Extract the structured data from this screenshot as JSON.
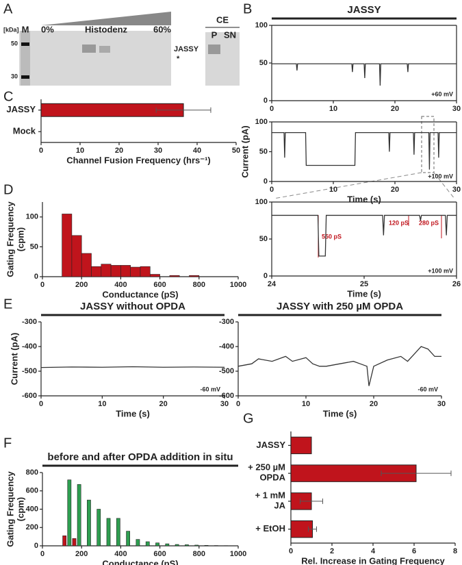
{
  "panels": [
    "A",
    "B",
    "C",
    "D",
    "E",
    "F",
    "G"
  ],
  "gel": {
    "unit": "[kDa]",
    "marker": "M",
    "low": "0%",
    "gradient": "Histodenz",
    "high": "60%",
    "mw": [
      "50",
      "30"
    ],
    "band": "JASSY",
    "star": "*",
    "ce": "CE",
    "ce_lanes": [
      "P",
      "SN"
    ]
  },
  "chart_data": [
    {
      "type": "line",
      "title": "JASSY",
      "box": true,
      "color": "#333333",
      "x": [
        0,
        4,
        4.1,
        4.2,
        13,
        13.1,
        13.2,
        15,
        15.1,
        15.2,
        17.5,
        17.6,
        17.7,
        22,
        22.1,
        22.2,
        30
      ],
      "values": [
        49,
        49,
        40,
        49,
        49,
        38,
        49,
        49,
        30,
        49,
        49,
        20,
        49,
        49,
        38,
        49,
        49
      ],
      "xlim": [
        0,
        30
      ],
      "xticks": [
        0,
        10,
        20,
        30
      ],
      "ylim": [
        0,
        100
      ],
      "yticks": [
        0,
        50,
        100
      ],
      "annotations": [
        "+60 mV"
      ]
    },
    {
      "type": "line",
      "box": true,
      "color": "#333333",
      "ylabel": "Current (pA)",
      "xlabel": "Time (s)",
      "x": [
        0,
        2,
        2.1,
        2.2,
        5.5,
        5.6,
        13.5,
        13.6,
        19,
        19.1,
        19.2,
        23,
        23.1,
        23.2,
        25.5,
        25.6,
        25.7,
        27,
        27.1,
        27.2,
        30
      ],
      "values": [
        82,
        82,
        40,
        82,
        82,
        27,
        27,
        82,
        82,
        50,
        82,
        82,
        45,
        82,
        82,
        20,
        82,
        82,
        40,
        82,
        82
      ],
      "xlim": [
        0,
        30
      ],
      "xticks": [
        0,
        10,
        20,
        30
      ],
      "ylim": [
        0,
        100
      ],
      "yticks": [
        0,
        50,
        100
      ],
      "annotations": [
        "+100 mV"
      ]
    },
    {
      "type": "line",
      "box": true,
      "color": "#333333",
      "xlabel": "Time (s)",
      "x": [
        24,
        24.5,
        24.51,
        24.58,
        24.59,
        25.2,
        25.21,
        25.22,
        25.6,
        25.61,
        25.62,
        25.88,
        25.89,
        25.9,
        26
      ],
      "values": [
        82,
        82,
        27,
        27,
        82,
        82,
        55,
        82,
        82,
        75,
        82,
        82,
        55,
        82,
        82
      ],
      "xlim": [
        24,
        26
      ],
      "xticks": [
        24,
        25,
        26
      ],
      "ylim": [
        0,
        100
      ],
      "yticks": [
        0,
        50,
        100
      ],
      "annotations": [
        "550 pS",
        "120 pS",
        "280 pS",
        "+100 mV"
      ]
    },
    {
      "type": "hbar",
      "categories": [
        "JASSY",
        "Mock"
      ],
      "values": [
        36.5,
        0
      ],
      "errors": [
        7,
        null
      ],
      "color": "#c0141c",
      "xlim": [
        0,
        50
      ],
      "xticks": [
        0,
        10,
        20,
        30,
        40,
        50
      ],
      "xlabel": "Channel Fusion Frequency (hrs⁻¹)"
    },
    {
      "type": "histogram",
      "bins": [
        100,
        150,
        200,
        250,
        300,
        350,
        400,
        450,
        500,
        550,
        600,
        650,
        700,
        750,
        800
      ],
      "series": [
        {
          "color": "#c0141c",
          "values": [
            105,
            69,
            39,
            17,
            21,
            19,
            19,
            16,
            17,
            4,
            0,
            2,
            0,
            2
          ]
        }
      ],
      "xlim": [
        0,
        1000
      ],
      "xticks": [
        0,
        200,
        400,
        600,
        800,
        1000
      ],
      "ylim": [
        0,
        125
      ],
      "yticks": [
        0,
        50,
        100
      ],
      "xlabel": "Conductance (pS)",
      "ylabel": "Gating Frequency\n(cpm)"
    },
    {
      "type": "line",
      "title": "JASSY without OPDA",
      "color": "#333333",
      "ylabel": "Current (pA)",
      "xlabel": "Time (s)",
      "x": [
        0,
        5,
        10,
        15,
        20,
        25,
        30
      ],
      "values": [
        -485,
        -483,
        -484,
        -482,
        -484,
        -483,
        -484
      ],
      "xlim": [
        0,
        30
      ],
      "xticks": [
        0,
        10,
        20,
        30
      ],
      "ylim": [
        -600,
        -300
      ],
      "yticks": [
        -600,
        -500,
        -400,
        -300
      ],
      "annotations": [
        "-60 mV"
      ]
    },
    {
      "type": "line",
      "title": "JASSY with 250 µM OPDA",
      "color": "#333333",
      "xlabel": "Time (s)",
      "x": [
        0,
        2,
        3,
        5,
        7,
        8,
        10,
        11,
        12,
        13,
        15,
        17,
        18,
        19,
        19.3,
        20,
        22,
        24,
        25,
        26,
        27,
        28,
        29,
        30
      ],
      "values": [
        -480,
        -470,
        -450,
        -460,
        -440,
        -460,
        -445,
        -470,
        -480,
        -480,
        -470,
        -460,
        -470,
        -480,
        -560,
        -480,
        -455,
        -440,
        -460,
        -430,
        -400,
        -410,
        -440,
        -440
      ],
      "xlim": [
        0,
        30
      ],
      "xticks": [
        0,
        10,
        20,
        30
      ],
      "ylim": [
        -600,
        -300
      ],
      "yticks": [
        -600,
        -500,
        -400,
        -300
      ],
      "annotations": [
        "-60 mV"
      ]
    },
    {
      "type": "histogram",
      "title": "before and after OPDA addition in situ",
      "bins": [
        100,
        150,
        200,
        250,
        300,
        350,
        400,
        450,
        500,
        550,
        600,
        650,
        700,
        750,
        800,
        850,
        900,
        950
      ],
      "series": [
        {
          "color": "#c0141c",
          "values": [
            110,
            80,
            0,
            0,
            0,
            0,
            0,
            0,
            0,
            0,
            0,
            0,
            0,
            0,
            0,
            0,
            0
          ]
        },
        {
          "color": "#2e9e50",
          "values": [
            720,
            670,
            500,
            400,
            300,
            300,
            160,
            70,
            45,
            32,
            22,
            15,
            12,
            8,
            5,
            3,
            2
          ]
        }
      ],
      "xlim": [
        0,
        1000
      ],
      "xticks": [
        0,
        200,
        400,
        600,
        800,
        1000
      ],
      "ylim": [
        0,
        800
      ],
      "yticks": [
        0,
        200,
        400,
        600,
        800
      ],
      "xlabel": "Conductance (pS)",
      "ylabel": "Gating Frequency\n(cpm)"
    },
    {
      "type": "hbar",
      "categories": [
        "JASSY",
        "+ 250 µM\nOPDA",
        "+ 1 mM\nJA",
        "+ EtOH"
      ],
      "values": [
        1,
        6.1,
        1.0,
        1.05
      ],
      "errors": [
        null,
        1.7,
        0.55,
        0.2
      ],
      "color": "#c0141c",
      "xlim": [
        0,
        8
      ],
      "xticks": [
        0,
        2,
        4,
        6,
        8
      ],
      "xlabel": "Rel. Increase in Gating Frequency"
    }
  ]
}
